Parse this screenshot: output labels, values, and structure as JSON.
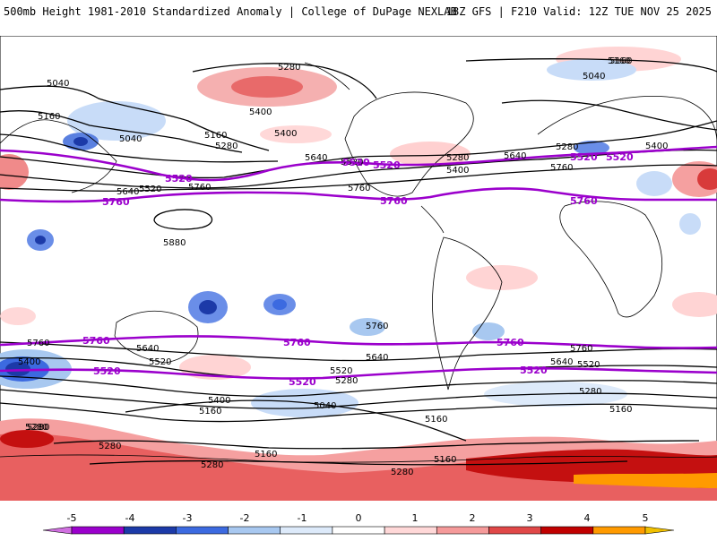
{
  "header": {
    "title": "500mb Height 1981-2010 Standardized Anomaly | College of DuPage NEXLAB",
    "run_info": "18Z GFS | F210 Valid: 12Z TUE NOV 25 2025"
  },
  "map": {
    "black_contour_labels": [
      "5040",
      "5160",
      "5040",
      "5160",
      "5280",
      "5400",
      "5280",
      "5400",
      "5160",
      "5520",
      "5640",
      "5760",
      "5880",
      "5280",
      "5400",
      "5640",
      "5520",
      "5760",
      "5160",
      "5040",
      "5280",
      "5400",
      "5640",
      "5760",
      "5760",
      "5640",
      "5520",
      "5400",
      "5760",
      "5640",
      "5520",
      "5400",
      "5280",
      "5160",
      "5040",
      "5160",
      "5280",
      "5280",
      "5160",
      "5280",
      "5160",
      "5280",
      "5760",
      "5640",
      "5520",
      "5280",
      "5160",
      "5280"
    ],
    "purple_contour_labels": [
      "5520",
      "5760",
      "5520",
      "5520",
      "5760",
      "5520",
      "5760",
      "5760",
      "5520",
      "5760",
      "5760",
      "5520",
      "5520",
      "5520"
    ],
    "colors": {
      "purple_contour": "#9b00cc",
      "black_contour": "#000000",
      "land_outline": "#000000"
    }
  },
  "colorbar": {
    "tick_labels": [
      "-5",
      "-4",
      "-3",
      "-2",
      "-1",
      "0",
      "1",
      "2",
      "3",
      "4",
      "5"
    ],
    "colors": [
      "#d070e0",
      "#9a00cc",
      "#1c3aa8",
      "#3c6ae0",
      "#a8c8f0",
      "#ddeafa",
      "#ffffff",
      "#ffd8d8",
      "#f59a9a",
      "#e04848",
      "#c00000",
      "#ff9a00",
      "#f0c000"
    ]
  }
}
